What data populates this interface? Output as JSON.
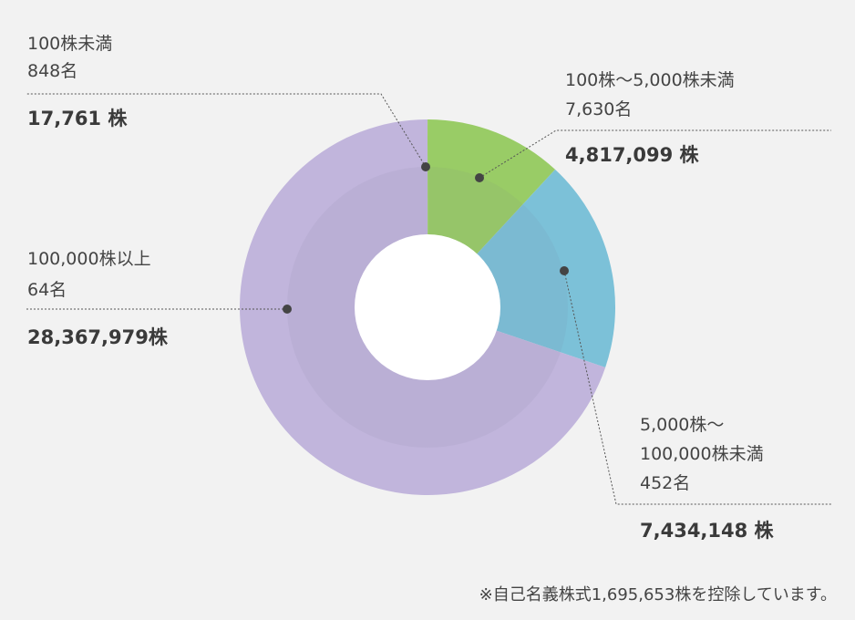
{
  "chart_data": {
    "type": "pie",
    "categories": [
      "100株未満",
      "100株～5,000株未満",
      "5,000株～\n100,000株未満",
      "100,000株以上"
    ],
    "series": [
      {
        "values": [
          17761,
          4817099,
          7434148,
          28367979
        ]
      }
    ],
    "labels": [
      {
        "category": "100株未満",
        "holders": "848名",
        "shares": "17,761 株"
      },
      {
        "category": "100株～5,000株未満",
        "holders": "7,630名",
        "shares": "4,817,099 株"
      },
      {
        "category_lines": [
          "5,000株～",
          "100,000株未満"
        ],
        "holders": "452名",
        "shares": "7,434,148 株"
      },
      {
        "category": "100,000株以上",
        "holders": "64名",
        "shares": "28,367,979株"
      }
    ],
    "colors": [
      "#9dcf63",
      "#99cc66",
      "#7cc1d8",
      "#c1b5dc"
    ],
    "note": "※自己名義株式1,695,653株を控除しています。"
  }
}
